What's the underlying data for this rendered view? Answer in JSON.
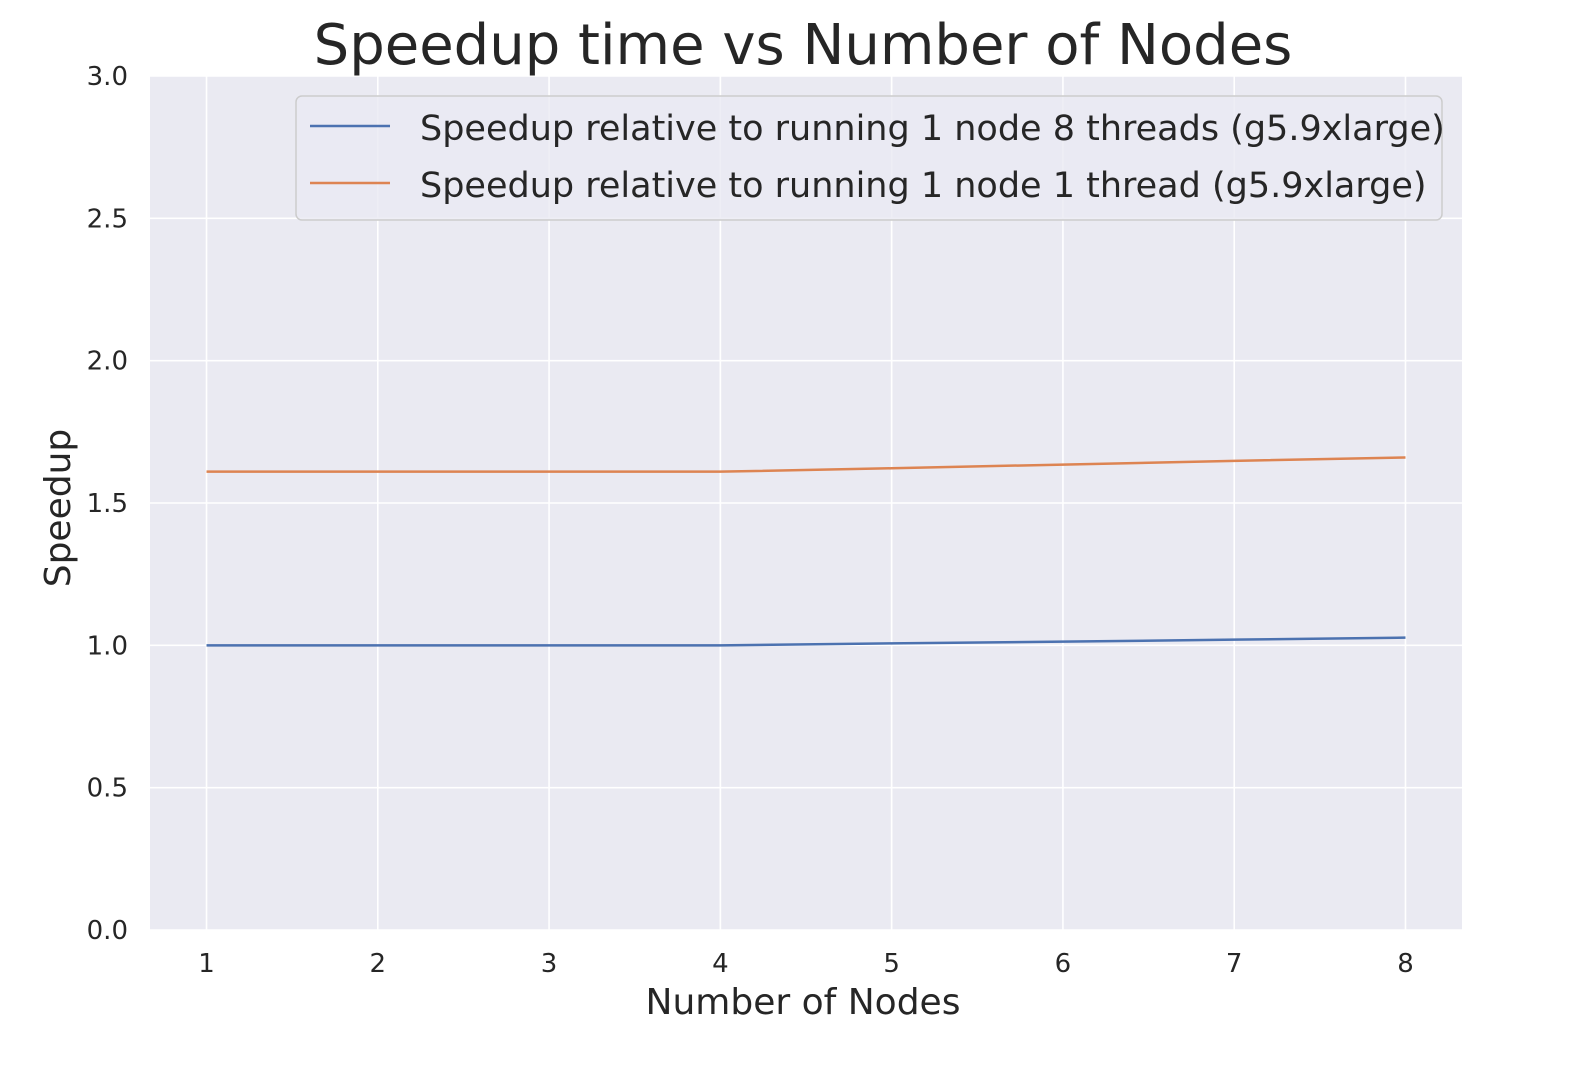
{
  "chart_data": {
    "type": "line",
    "title": "Speedup time vs Number of Nodes",
    "xlabel": "Number of Nodes",
    "ylabel": "Speedup",
    "x": [
      1,
      2,
      3,
      4,
      5,
      6,
      7,
      8
    ],
    "xlim": [
      0.67,
      8.33
    ],
    "ylim": [
      0.0,
      3.0
    ],
    "xticks": [
      1,
      2,
      3,
      4,
      5,
      6,
      7,
      8
    ],
    "yticks": [
      0.0,
      0.5,
      1.0,
      1.5,
      2.0,
      2.5,
      3.0
    ],
    "ytick_labels": [
      "0.0",
      "0.5",
      "1.0",
      "1.5",
      "2.0",
      "2.5",
      "3.0"
    ],
    "grid": true,
    "legend_position": "top-right",
    "colors": {
      "background": "#eaeaf2",
      "grid": "#ffffff",
      "legend_frame": "#cccccc"
    },
    "series": [
      {
        "name": "Speedup relative to running 1 node 8 threads (g5.9xlarge)",
        "color": "#4c72b0",
        "values": [
          1.0,
          1.0,
          1.0,
          1.0,
          1.007,
          1.013,
          1.02,
          1.027
        ]
      },
      {
        "name": "Speedup relative to running 1 node 1 thread (g5.9xlarge)",
        "color": "#dd8452",
        "values": [
          1.61,
          1.61,
          1.61,
          1.61,
          1.622,
          1.635,
          1.648,
          1.66
        ]
      }
    ]
  }
}
